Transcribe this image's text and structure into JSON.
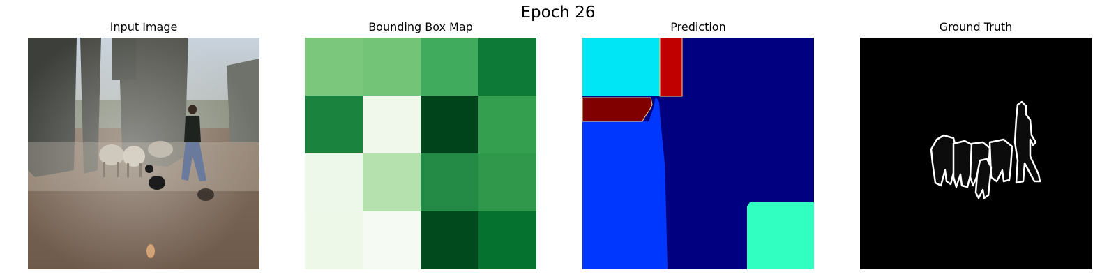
{
  "figure": {
    "title": "Epoch 26"
  },
  "panels": {
    "input": {
      "title": "Input Image"
    },
    "bbox": {
      "title": "Bounding Box Map",
      "colormap": "Greens",
      "grid_colors": [
        [
          "#7bc87c",
          "#73c476",
          "#41ab5d",
          "#0e7a37"
        ],
        [
          "#1a843f",
          "#f0f8ec",
          "#00441b",
          "#34a04f"
        ],
        [
          "#eef8ea",
          "#b4e1ad",
          "#238b45",
          "#2f984a"
        ],
        [
          "#edf8e9",
          "#f5fbf2",
          "#004a1e",
          "#067230"
        ]
      ]
    },
    "prediction": {
      "title": "Prediction",
      "colormap": "jet",
      "colors": {
        "background": "#000080",
        "cyan": "#00e6f5",
        "red": "#c00000",
        "dark_red": "#800000",
        "blue": "#0037ff",
        "aqua_green": "#31ffc2"
      }
    },
    "ground_truth": {
      "title": "Ground Truth",
      "colors": {
        "background": "#000000",
        "outline": "#ffffff",
        "fill": "#0c0c0c"
      }
    }
  }
}
